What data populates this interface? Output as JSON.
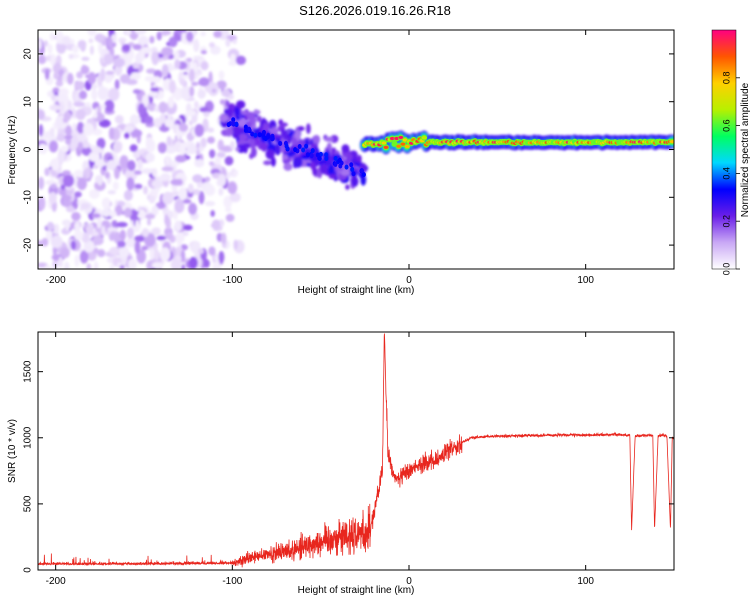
{
  "title": "S126.2026.019.16.26.R18",
  "chart_data": [
    {
      "type": "heatmap",
      "name": "spectrogram",
      "xlabel": "Height of straight line (km)",
      "ylabel": "Frequency (Hz)",
      "xlim": [
        -210,
        150
      ],
      "ylim": [
        -25,
        25
      ],
      "xticks": [
        -200,
        -100,
        0,
        100
      ],
      "yticks": [
        -20,
        -10,
        0,
        10,
        20
      ],
      "colorbar": {
        "label": "Normalized spectral amplitude",
        "range": [
          0,
          1
        ],
        "ticks": [
          "0.0",
          "0.2",
          "0.4",
          "0.6",
          "0.8"
        ],
        "tick_values": [
          0.0,
          0.2,
          0.4,
          0.6,
          0.8
        ],
        "colors": [
          "#ffffff",
          "#c9a8f5",
          "#6a1ee8",
          "#0000ff",
          "#00d8ff",
          "#00ff60",
          "#b8f000",
          "#ffd000",
          "#ff5500",
          "#ff0080"
        ]
      },
      "regions": [
        {
          "x_range": [
            -210,
            -95
          ],
          "freq_range": [
            -25,
            25
          ],
          "description": "diffuse noise",
          "amplitude_range": [
            0.02,
            0.18
          ]
        },
        {
          "x_range": [
            -105,
            -25
          ],
          "freq_from": [
            6,
            -5
          ],
          "description": "diagonal carrier",
          "amplitude_range": [
            0.15,
            0.35
          ]
        },
        {
          "x_range": [
            -25,
            150
          ],
          "freq": 1.5,
          "description": "steady carrier",
          "amplitude_range": [
            0.6,
            0.98
          ]
        }
      ]
    },
    {
      "type": "line",
      "name": "snr",
      "xlabel": "Height of straight line (km)",
      "ylabel": "SNR (10 * v/v)",
      "xlim": [
        -210,
        150
      ],
      "ylim": [
        0,
        1800
      ],
      "xticks": [
        -200,
        -100,
        0,
        100
      ],
      "yticks": [
        0,
        500,
        1000,
        1500
      ],
      "color": "#e8261e",
      "series": [
        {
          "name": "SNR",
          "x": [
            -210,
            -150,
            -100,
            -90,
            -70,
            -55,
            -40,
            -30,
            -22,
            -15,
            -14,
            -12,
            -8,
            -3,
            5,
            15,
            25,
            35,
            45,
            60,
            80,
            100,
            115,
            125,
            126,
            128,
            138,
            139,
            141,
            143,
            144,
            146,
            148,
            149,
            150
          ],
          "y": [
            40,
            40,
            45,
            90,
            140,
            200,
            250,
            270,
            300,
            750,
            1800,
            900,
            680,
            720,
            800,
            820,
            930,
            1000,
            1010,
            1015,
            1020,
            1020,
            1025,
            1020,
            300,
            1015,
            1020,
            300,
            1015,
            1020,
            1020,
            1015,
            300,
            1000,
            1000
          ]
        }
      ]
    }
  ]
}
